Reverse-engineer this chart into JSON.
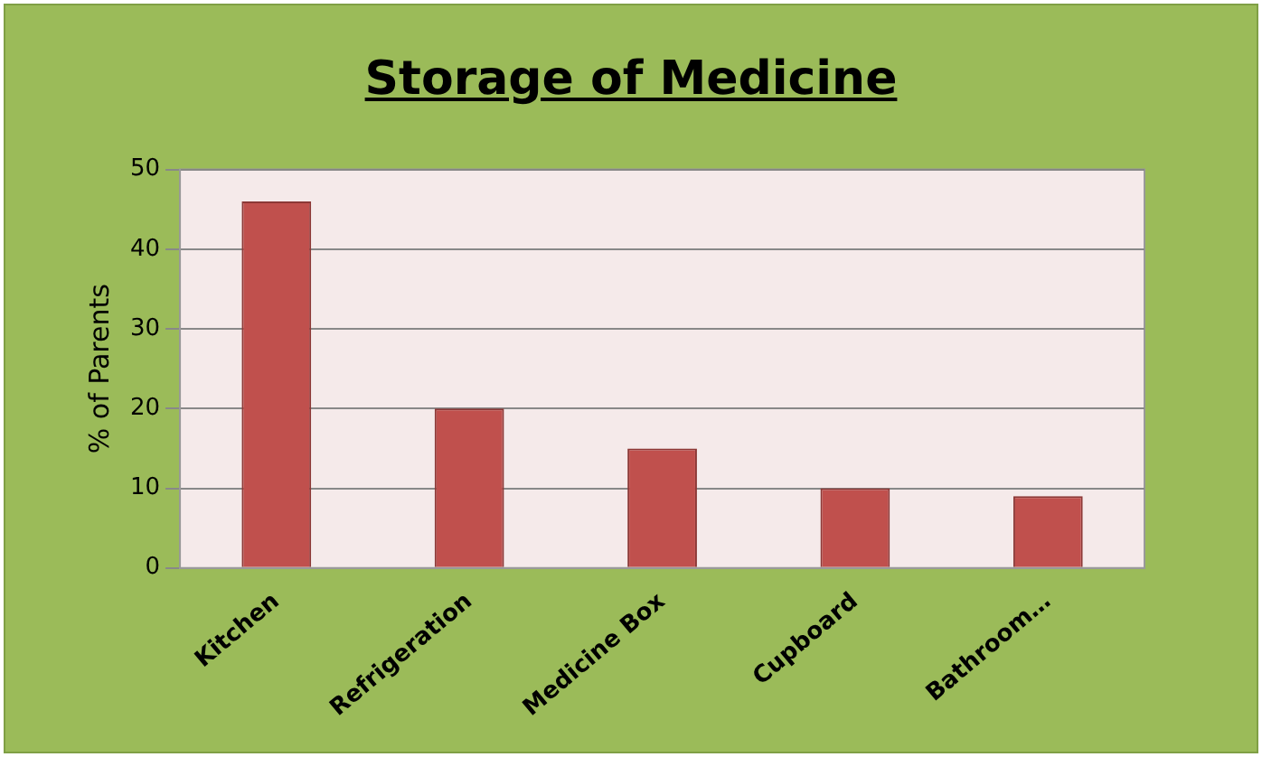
{
  "chart_data": {
    "type": "bar",
    "title": "Storage of Medicine",
    "ylabel": "% of Parents",
    "categories": [
      "Kitchen",
      "Refrigeration",
      "Medicine Box",
      "Cupboard",
      "Bathroom…"
    ],
    "values": [
      46,
      20,
      15,
      10,
      9
    ],
    "color": "#c0504d",
    "ylim": [
      0,
      50
    ],
    "yticks": [
      0,
      10,
      20,
      30,
      40,
      50
    ],
    "grid": "y"
  }
}
